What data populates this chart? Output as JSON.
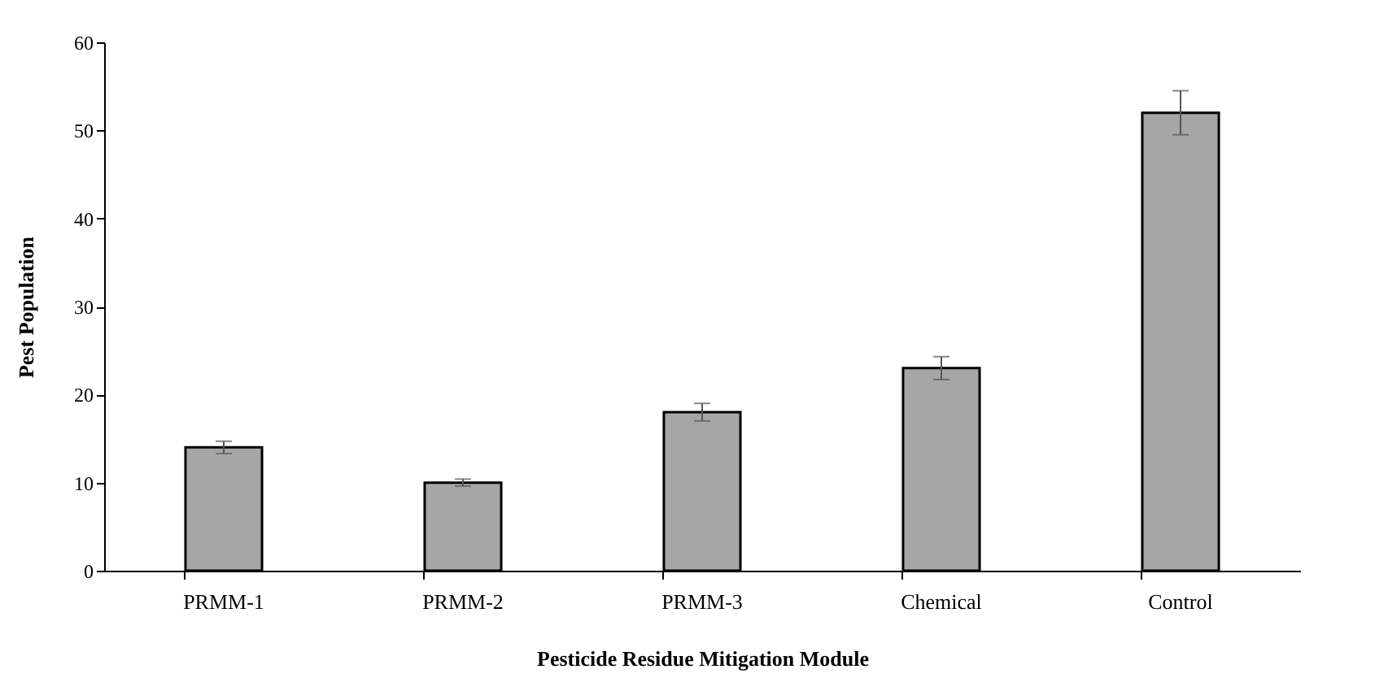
{
  "chart_data": {
    "type": "bar",
    "xlabel": "Pesticide Residue Mitigation  Module",
    "ylabel": "Pest Population",
    "categories": [
      "PRMM-1",
      "PRMM-2",
      "PRMM-3",
      "Chemical",
      "Control"
    ],
    "values": [
      14,
      10,
      18,
      23,
      52
    ],
    "errors": [
      0.7,
      0.4,
      1.0,
      1.3,
      2.5
    ],
    "color": "#a6a6a6",
    "ylim": [
      0,
      60
    ],
    "yticks": [
      0,
      10,
      20,
      30,
      40,
      50,
      60
    ],
    "grid": false
  }
}
